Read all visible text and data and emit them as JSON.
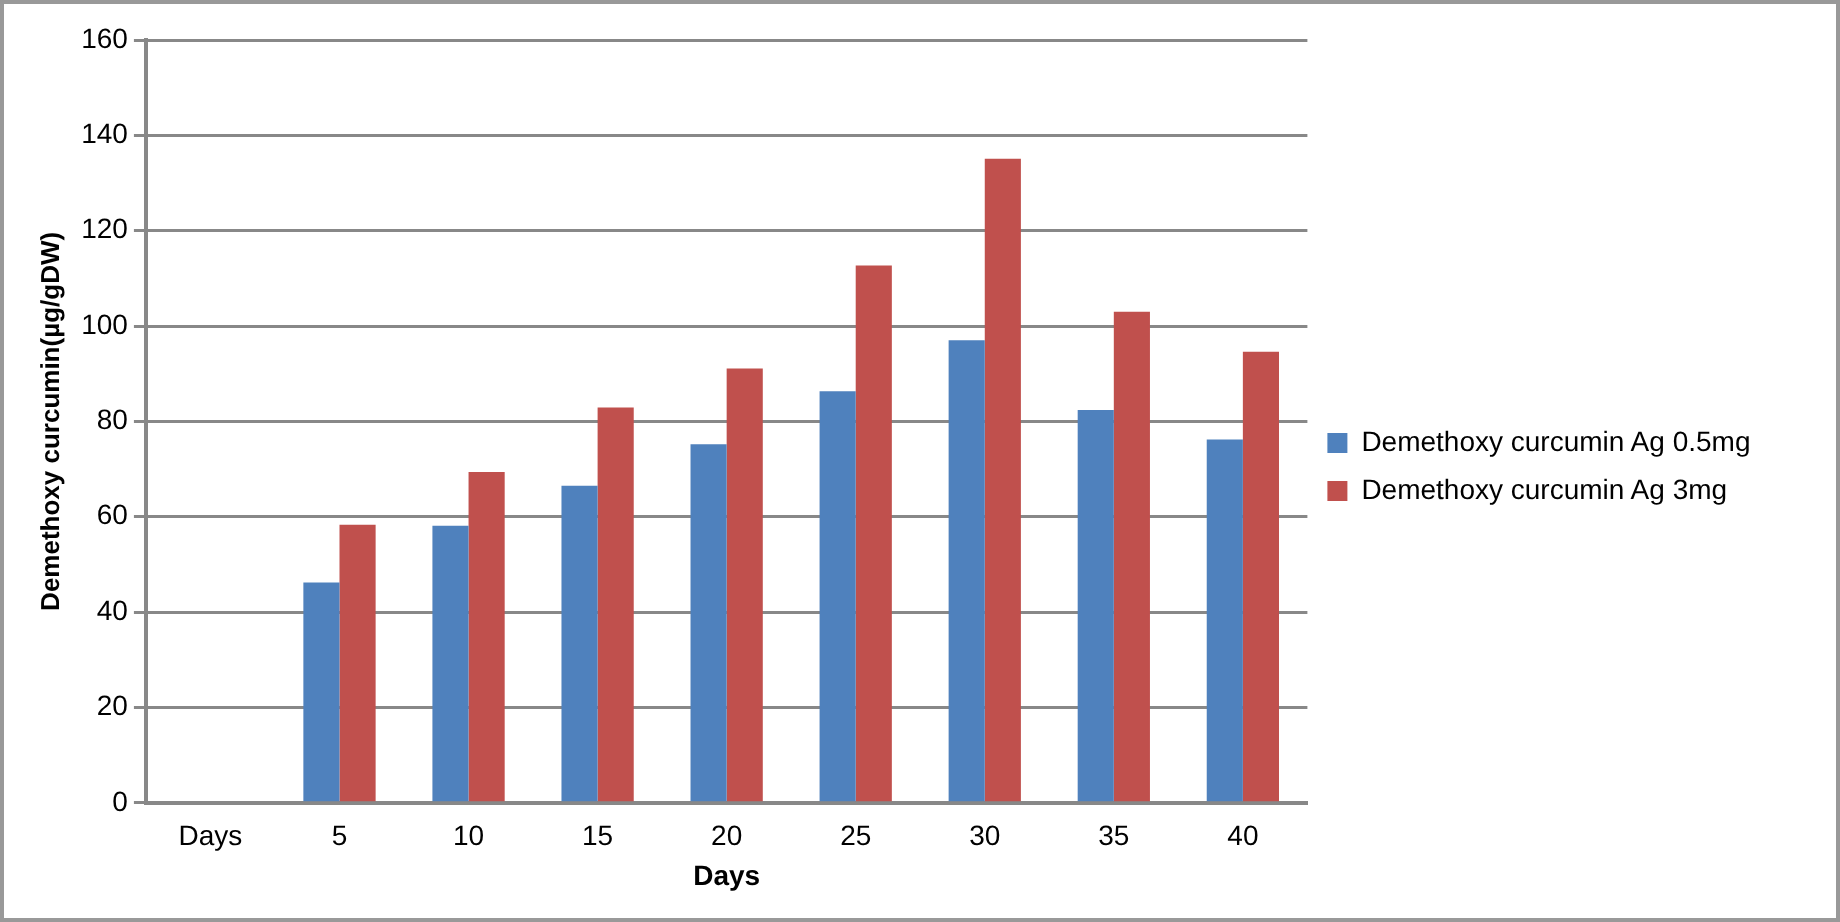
{
  "chart_data": {
    "type": "bar",
    "xlabel": "Days",
    "ylabel": "Demethoxy curcumin(µg/gDW)",
    "categories": [
      "Days",
      "5",
      "10",
      "15",
      "20",
      "25",
      "30",
      "35",
      "40"
    ],
    "series": [
      {
        "name": "Demethoxy curcumin Ag 0.5mg",
        "color": "#4f81bd",
        "values": [
          null,
          46.2,
          58.1,
          66.5,
          75.2,
          86.3,
          97,
          82.4,
          76.2
        ]
      },
      {
        "name": "Demethoxy curcumin Ag 3mg",
        "color": "#c0504d",
        "values": [
          null,
          58.3,
          69.4,
          82.9,
          91.1,
          112.7,
          135.1,
          103,
          94.6
        ]
      }
    ],
    "ylim": [
      0,
      160
    ],
    "yticks": [
      0,
      20,
      40,
      60,
      80,
      100,
      120,
      140,
      160
    ],
    "grid": "y",
    "legend": "right"
  }
}
